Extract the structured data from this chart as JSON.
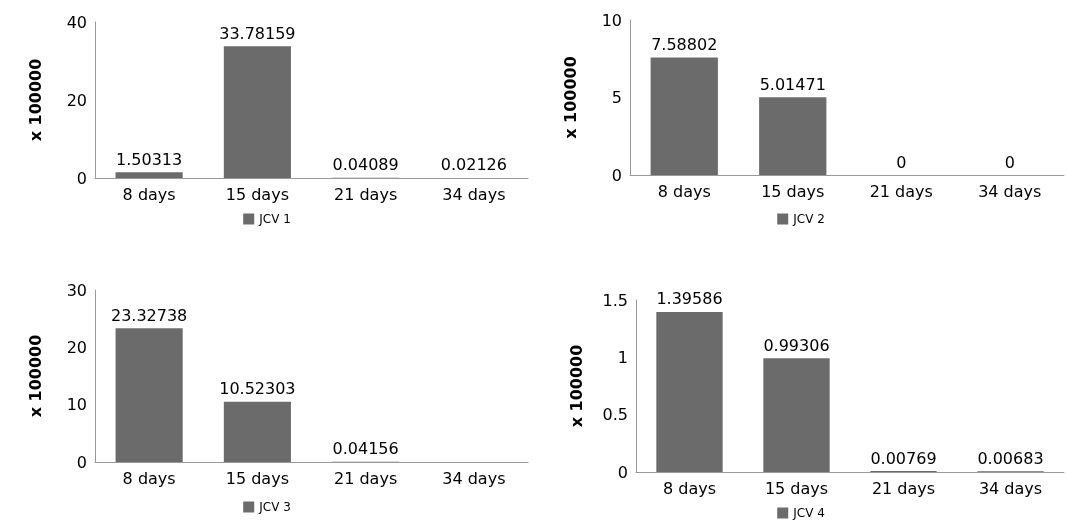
{
  "chart_data": [
    {
      "type": "bar",
      "categories": [
        "8 days",
        "15 days",
        "21 days",
        "34 days"
      ],
      "ylabel": "x 100000",
      "series": [
        {
          "name": "JCV 1",
          "color": "#6b6b6b",
          "values": [
            1.50313,
            33.78159,
            0.04089,
            0.02126
          ]
        }
      ],
      "ylim": [
        0,
        40
      ],
      "yticks": [
        0,
        20,
        40
      ],
      "data_labels": true,
      "grid": false,
      "legend": "bottom"
    },
    {
      "type": "bar",
      "categories": [
        "8 days",
        "15 days",
        "21 days",
        "34 days"
      ],
      "ylabel": "x 100000",
      "series": [
        {
          "name": "JCV 2",
          "color": "#6b6b6b",
          "values": [
            7.58802,
            5.01471,
            0,
            0
          ]
        }
      ],
      "ylim": [
        0,
        10
      ],
      "yticks": [
        0,
        5,
        10
      ],
      "data_labels": true,
      "grid": false,
      "legend": "bottom"
    },
    {
      "type": "bar",
      "categories": [
        "8 days",
        "15 days",
        "21 days",
        "34 days"
      ],
      "ylabel": "x 100000",
      "series": [
        {
          "name": "JCV 3",
          "color": "#6b6b6b",
          "values": [
            23.32738,
            10.52303,
            0.04156,
            null
          ],
          "value_labels": [
            "23.32738",
            "10.52303",
            "0.04156",
            null
          ]
        }
      ],
      "ylim": [
        0,
        30
      ],
      "yticks": [
        0,
        10,
        20,
        30
      ],
      "grid": false,
      "legend": "bottom"
    },
    {
      "type": "bar",
      "categories": [
        "8 days",
        "15 days",
        "21 days",
        "34 days"
      ],
      "ylabel": "x 100000",
      "series": [
        {
          "name": "JCV 4",
          "color": "#6b6b6b",
          "values": [
            1.39586,
            0.99306,
            0.00769,
            0.00683
          ]
        }
      ],
      "ylim": [
        0,
        1.5
      ],
      "yticks": [
        0,
        0.5,
        1,
        1.5
      ],
      "data_labels": true,
      "grid": false,
      "legend": "bottom"
    }
  ]
}
